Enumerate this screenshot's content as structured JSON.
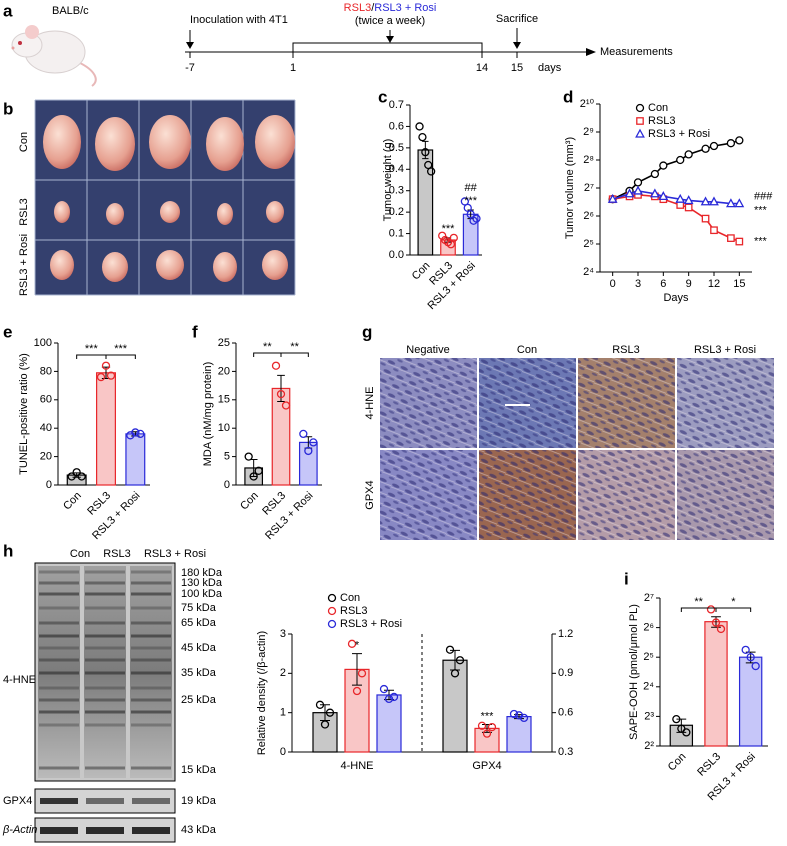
{
  "panel_letters": [
    "a",
    "b",
    "c",
    "d",
    "e",
    "f",
    "g",
    "h",
    "i"
  ],
  "timeline": {
    "strain": "BALB/c",
    "inoculation": "Inoculation with 4T1",
    "treatment": [
      "RSL3",
      "/",
      "RSL3 + Rosi"
    ],
    "treatment_colors": [
      "#e8262a",
      "#000000",
      "#2a2ad8"
    ],
    "schedule": "(twice a week)",
    "sacrifice": "Sacrifice",
    "end": "Measurements",
    "days": [
      "-7",
      "1",
      "14",
      "15"
    ],
    "unit": "days"
  },
  "photo": {
    "rows": [
      "Con",
      "RSL3",
      "RSL3 + Rosi"
    ]
  },
  "micrographs": {
    "columns": [
      "Negative",
      "Con",
      "RSL3",
      "RSL3 + Rosi"
    ],
    "rows": [
      "4-HNE",
      "GPX4"
    ]
  },
  "blot": {
    "lanes": [
      "Con",
      "RSL3",
      "RSL3 + Rosi"
    ],
    "rows": [
      "4-HNE",
      "GPX4",
      "β-Actin"
    ],
    "markers": [
      "180 kDa",
      "130 kDa",
      "100 kDa",
      "75 kDa",
      "65 kDa",
      "45 kDa",
      "35 kDa",
      "25 kDa",
      "15 kDa"
    ],
    "gpx4_size": "19 kDa",
    "actin_size": "43 kDa"
  },
  "chart_data": [
    {
      "type": "bar",
      "ylabel": "Tumor weight (g)",
      "categories": [
        "Con",
        "RSL3",
        "RSL3 + Rosi"
      ],
      "values": [
        0.49,
        0.07,
        0.19
      ],
      "errors": [
        0.04,
        0.01,
        0.02
      ],
      "points": [
        [
          0.6,
          0.55,
          0.48,
          0.42,
          0.39
        ],
        [
          0.09,
          0.07,
          0.06,
          0.05,
          0.08
        ],
        [
          0.25,
          0.22,
          0.19,
          0.16,
          0.17
        ]
      ],
      "colors": [
        "#000000",
        "#e8262a",
        "#2a2ad8"
      ],
      "fill_colors": [
        "#c8c8c8",
        "#f9c6c6",
        "#c6c6f9"
      ],
      "ylim": [
        0,
        0.7
      ],
      "yticks": [
        {
          "value": 0,
          "label": "0.0"
        },
        0.1,
        0.2,
        0.3,
        0.4,
        0.5,
        0.6,
        0.7
      ],
      "annotations": [
        "***",
        "##",
        "***"
      ]
    },
    {
      "type": "scatter",
      "log_scale": true,
      "xlabel": "Days",
      "ylabel": "Tumor volume (mm³)",
      "x": [
        0,
        2,
        3,
        5,
        6,
        8,
        9,
        11,
        12,
        14,
        15
      ],
      "series": [
        {
          "name": "Con",
          "color": "#000000",
          "marker": "circle",
          "values": [
            97,
            119,
            147,
            181,
            223,
            256,
            294,
            338,
            362,
            388,
            416
          ]
        },
        {
          "name": "RSL3",
          "color": "#e8262a",
          "marker": "square",
          "values": [
            97,
            104,
            108,
            104,
            97,
            84,
            79,
            60,
            45,
            37,
            34
          ]
        },
        {
          "name": "RSL3 + Rosi",
          "color": "#2a2ad8",
          "marker": "triangle",
          "values": [
            97,
            111,
            119,
            111,
            104,
            97,
            94,
            91,
            91,
            87,
            87
          ]
        }
      ],
      "xlim": [
        -1.5,
        16.5
      ],
      "xticks": [
        0,
        3,
        6,
        9,
        12,
        15
      ],
      "ylim": [
        16,
        1024
      ],
      "yticks": [
        {
          "value": 16,
          "label": "2⁴"
        },
        {
          "value": 32,
          "label": "2⁵"
        },
        {
          "value": 64,
          "label": "2⁶"
        },
        {
          "value": 128,
          "label": "2⁷"
        },
        {
          "value": 256,
          "label": "2⁸"
        },
        {
          "value": 512,
          "label": "2⁹"
        },
        {
          "value": 1024,
          "label": "2¹⁰"
        }
      ],
      "legend": "top-left",
      "annotations": [
        "###",
        "***",
        "***"
      ]
    },
    {
      "type": "bar",
      "ylabel": "TUNEL-positive ratio (%)",
      "categories": [
        "Con",
        "RSL3",
        "RSL3 + Rosi"
      ],
      "values": [
        7,
        79,
        36
      ],
      "errors": [
        1.5,
        4,
        1.5
      ],
      "points": [
        [
          6,
          9,
          6
        ],
        [
          76,
          84,
          77
        ],
        [
          35,
          37,
          36
        ]
      ],
      "colors": [
        "#000000",
        "#e8262a",
        "#2a2ad8"
      ],
      "fill_colors": [
        "#c8c8c8",
        "#f9c6c6",
        "#c6c6f9"
      ],
      "ylim": [
        0,
        100
      ],
      "yticks": [
        0,
        20,
        40,
        60,
        80,
        100
      ],
      "annotations": [
        "***",
        "***"
      ]
    },
    {
      "type": "bar",
      "ylabel": "MDA (nM/mg protein)",
      "categories": [
        "Con",
        "RSL3",
        "RSL3 + Rosi"
      ],
      "values": [
        3,
        17,
        7.5
      ],
      "errors": [
        1.5,
        2.3,
        1
      ],
      "points": [
        [
          5,
          1.5,
          2.5
        ],
        [
          21,
          16,
          14
        ],
        [
          9,
          6,
          7.5
        ]
      ],
      "colors": [
        "#000000",
        "#e8262a",
        "#2a2ad8"
      ],
      "fill_colors": [
        "#c8c8c8",
        "#f9c6c6",
        "#c6c6f9"
      ],
      "ylim": [
        0,
        25
      ],
      "yticks": [
        0,
        5,
        10,
        15,
        20,
        25
      ],
      "annotations": [
        "**",
        "**"
      ]
    },
    {
      "type": "grouped-bar",
      "ylabel": "Relative density (/β-actin)",
      "categories": [
        "4-HNE",
        "GPX4"
      ],
      "series": [
        {
          "name": "Con",
          "color": "#000000",
          "fill": "#c8c8c8",
          "values": [
            1.0,
            null
          ],
          "errors": [
            0.2,
            null
          ],
          "points": [
            [
              1.2,
              0.7,
              1.0
            ],
            null
          ]
        },
        {
          "name": "RSL3",
          "color": "#e8262a",
          "fill": "#f9c6c6",
          "values": [
            2.1,
            null
          ],
          "errors": [
            0.4,
            null
          ],
          "points": [
            [
              2.75,
              1.55,
              2.0
            ],
            null
          ]
        },
        {
          "name": "RSL3 + Rosi",
          "color": "#2a2ad8",
          "fill": "#c6c6f9",
          "values": [
            1.45,
            null
          ],
          "errors": [
            0.12,
            null
          ],
          "points": [
            [
              1.6,
              1.35,
              1.4
            ],
            null
          ]
        },
        {
          "axis": "y2",
          "color": "#000000",
          "fill": "#c8c8c8",
          "values": [
            null,
            1.0
          ],
          "errors": [
            null,
            0.075
          ],
          "points": [
            null,
            [
              1.08,
              0.9,
              1.0
            ]
          ]
        },
        {
          "axis": "y2",
          "color": "#e8262a",
          "fill": "#f9c6c6",
          "values": [
            null,
            0.48
          ],
          "errors": [
            null,
            0.03
          ],
          "points": [
            null,
            [
              0.5,
              0.44,
              0.49
            ]
          ]
        },
        {
          "axis": "y2",
          "color": "#2a2ad8",
          "fill": "#c6c6f9",
          "values": [
            null,
            0.57
          ],
          "errors": [
            null,
            0.015
          ],
          "points": [
            null,
            [
              0.59,
              0.58,
              0.56
            ]
          ]
        }
      ],
      "ylim": [
        0,
        3
      ],
      "yticks": [
        0,
        1,
        2,
        3
      ],
      "y2lim": [
        0.3,
        1.2
      ],
      "y2ticks": [
        0.3,
        0.6,
        0.9,
        1.2
      ],
      "legend": "top-left",
      "annotations": [
        "*",
        "***"
      ]
    },
    {
      "type": "bar",
      "log_scale": true,
      "ylabel": "SAPE-OOH (pmol/μmol PL)",
      "categories": [
        "Con",
        "RSL3",
        "RSL3 + Rosi"
      ],
      "values": [
        6.5,
        73.5,
        32
      ],
      "errors": [
        1,
        9,
        4
      ],
      "points": [
        [
          7.5,
          6,
          5.5
        ],
        [
          98,
          72,
          62
        ],
        [
          38,
          32,
          26
        ]
      ],
      "colors": [
        "#000000",
        "#e8262a",
        "#2a2ad8"
      ],
      "fill_colors": [
        "#c8c8c8",
        "#f9c6c6",
        "#c6c6f9"
      ],
      "ylim": [
        4,
        128
      ],
      "yticks": [
        {
          "value": 4,
          "label": "2²"
        },
        {
          "value": 8,
          "label": "2³"
        },
        {
          "value": 16,
          "label": "2⁴"
        },
        {
          "value": 32,
          "label": "2⁵"
        },
        {
          "value": 64,
          "label": "2⁶"
        },
        {
          "value": 128,
          "label": "2⁷"
        }
      ],
      "annotations": [
        "**",
        "*"
      ]
    }
  ]
}
